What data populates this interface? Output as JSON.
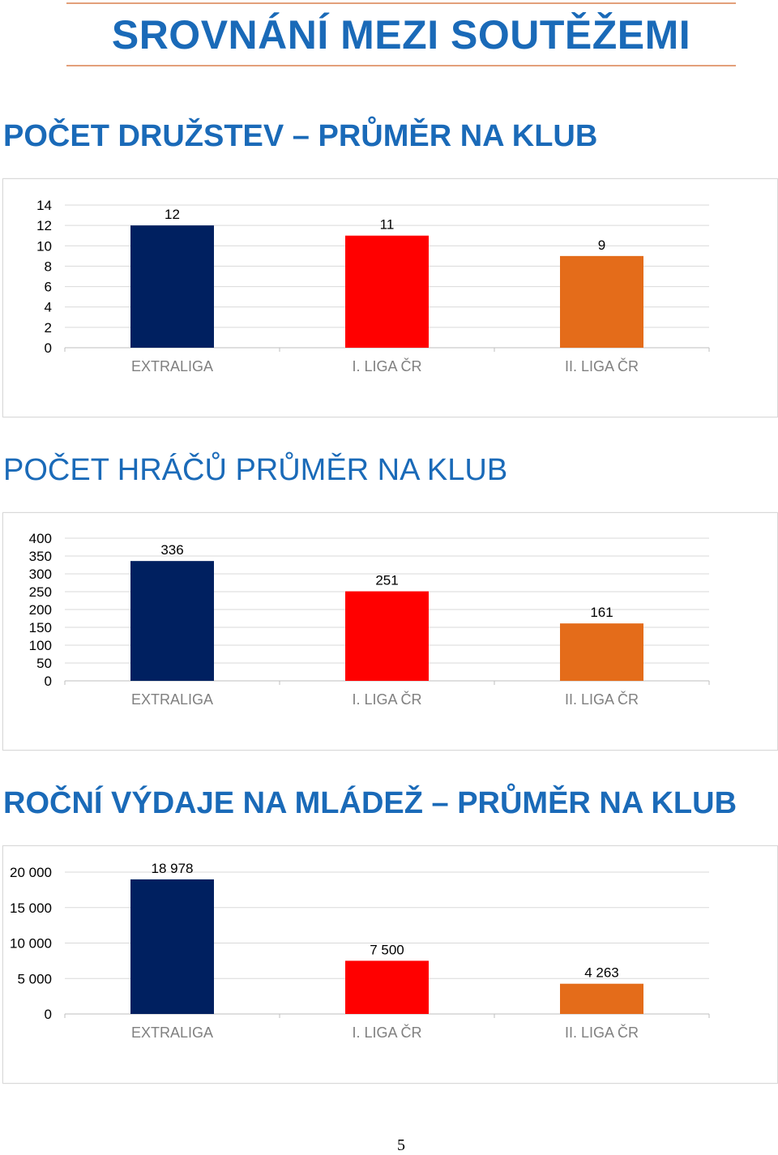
{
  "page": {
    "title": "SROVNÁNÍ MEZI SOUTĚŽEMI",
    "page_number": "5"
  },
  "sections": [
    {
      "title": "POČET DRUŽSTEV – PRŮMĚR NA KLUB"
    },
    {
      "title": "POČET HRÁČŮ PRŮMĚR NA KLUB"
    },
    {
      "title": "ROČNÍ VÝDAJE NA MLÁDEŽ – PRŮMĚR NA KLUB"
    }
  ],
  "colors": {
    "extraliga": "#002060",
    "liga1": "#ff0000",
    "liga2": "#e46c1a",
    "title": "#1a6ab8"
  },
  "chart_data": [
    {
      "type": "bar",
      "categories": [
        "EXTRALIGA",
        "I. LIGA ČR",
        "II. LIGA ČR"
      ],
      "values": [
        12,
        11,
        9
      ],
      "value_labels": [
        "12",
        "11",
        "9"
      ],
      "yticks": [
        "0",
        "2",
        "4",
        "6",
        "8",
        "10",
        "12",
        "14"
      ],
      "ylim": [
        0,
        14
      ],
      "grid": true
    },
    {
      "type": "bar",
      "categories": [
        "EXTRALIGA",
        "I. LIGA ČR",
        "II. LIGA ČR"
      ],
      "values": [
        336,
        251,
        161
      ],
      "value_labels": [
        "336",
        "251",
        "161"
      ],
      "yticks": [
        "0",
        "50",
        "100",
        "150",
        "200",
        "250",
        "300",
        "350",
        "400"
      ],
      "ylim": [
        0,
        400
      ],
      "grid": true
    },
    {
      "type": "bar",
      "categories": [
        "EXTRALIGA",
        "I. LIGA ČR",
        "II. LIGA ČR"
      ],
      "values": [
        18978,
        7500,
        4263
      ],
      "value_labels": [
        "18 978",
        "7 500",
        "4 263"
      ],
      "yticks": [
        "0",
        "5 000",
        "10 000",
        "15 000",
        "20 000"
      ],
      "ylim": [
        0,
        20000
      ],
      "grid": true
    }
  ]
}
